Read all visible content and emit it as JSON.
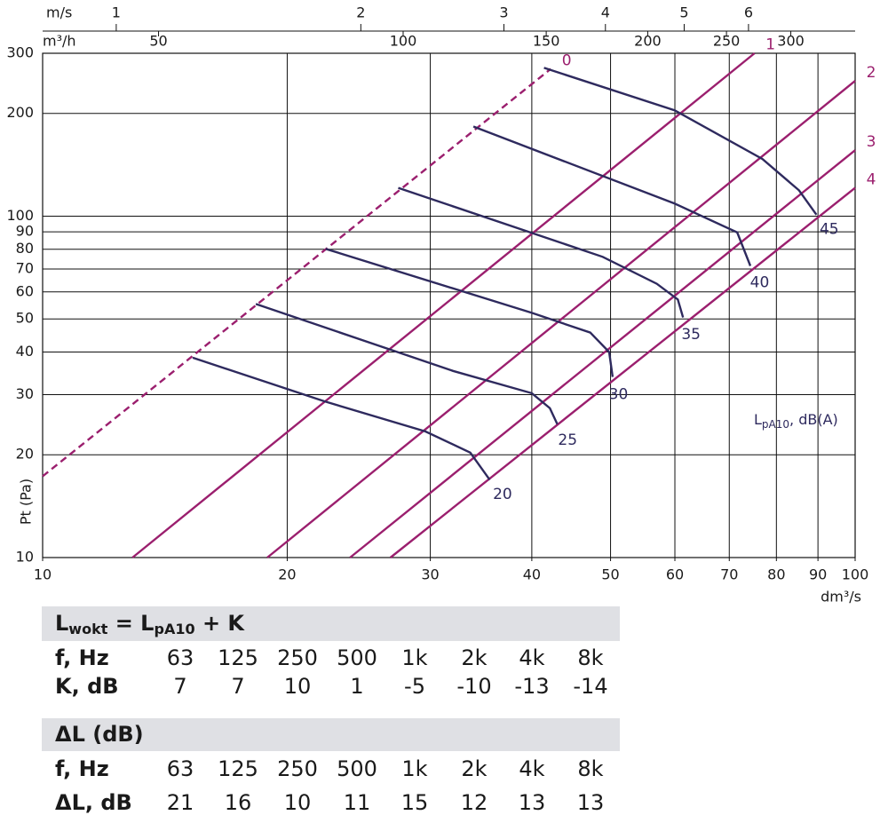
{
  "chart_data": {
    "type": "line",
    "xscale": "log",
    "yscale": "log",
    "xlim": [
      10,
      100
    ],
    "ylim": [
      10,
      300
    ],
    "xticks": [
      10,
      20,
      30,
      40,
      50,
      60,
      70,
      80,
      90,
      100
    ],
    "yticks": [
      10,
      20,
      30,
      40,
      50,
      60,
      70,
      80,
      90,
      100,
      200,
      300
    ],
    "xlabel": "dm³/s",
    "ylabel": "Pt (Pa)",
    "x2label": "m/s",
    "x2lim": [
      0.8117,
      8.117
    ],
    "x2ticks": [
      1,
      2,
      3,
      4,
      5,
      6
    ],
    "x3label": "m³/h",
    "x3lim": [
      36,
      360
    ],
    "x3ticks": [
      50,
      100,
      150,
      200,
      250,
      300
    ],
    "grid": true,
    "annotation": [
      "L",
      "pA10",
      ", dB(A)"
    ],
    "series": [
      {
        "name": "0",
        "color": "#9b1f6e",
        "dashed": true,
        "x": [
          10,
          42.2
        ],
        "values": [
          17.3,
          270
        ]
      },
      {
        "name": "1",
        "color": "#9b1f6e",
        "x": [
          12.9,
          75.2
        ],
        "values": [
          10,
          300
        ]
      },
      {
        "name": "2",
        "color": "#9b1f6e",
        "x": [
          18.9,
          100
        ],
        "values": [
          10,
          249
        ]
      },
      {
        "name": "3",
        "color": "#9b1f6e",
        "x": [
          23.9,
          100
        ],
        "values": [
          10,
          156
        ]
      },
      {
        "name": "4",
        "color": "#9b1f6e",
        "x": [
          26.8,
          100
        ],
        "values": [
          10,
          121
        ]
      },
      {
        "name": "20",
        "color": "#2e2a5e",
        "x": [
          15.3,
          22.2,
          29.6,
          33.6,
          35.5
        ],
        "values": [
          38.5,
          28.7,
          23.4,
          20.3,
          16.9
        ]
      },
      {
        "name": "25",
        "color": "#2e2a5e",
        "x": [
          18.3,
          32,
          40,
          42.1,
          43
        ],
        "values": [
          55.3,
          35.2,
          30.3,
          27.4,
          24.6
        ]
      },
      {
        "name": "30",
        "color": "#2e2a5e",
        "x": [
          22.3,
          40,
          47.2,
          49.8,
          50.3
        ],
        "values": [
          80.2,
          52.1,
          45.6,
          40,
          33.8
        ]
      },
      {
        "name": "35",
        "color": "#2e2a5e",
        "x": [
          27.4,
          48.9,
          57,
          60.5,
          61.4
        ],
        "values": [
          121,
          76,
          63.4,
          57,
          50.5
        ]
      },
      {
        "name": "40",
        "color": "#2e2a5e",
        "x": [
          33.9,
          60,
          71.6,
          74.3
        ],
        "values": [
          183,
          108.8,
          89.6,
          71.5
        ]
      },
      {
        "name": "45",
        "color": "#2e2a5e",
        "x": [
          41.4,
          60,
          76.9,
          85.3,
          89.6
        ],
        "values": [
          272,
          204,
          147,
          119,
          101
        ]
      }
    ]
  },
  "tables": [
    {
      "title": [
        "L",
        "wokt",
        " = L",
        "pA10",
        " + K"
      ],
      "rows": [
        [
          "f, Hz",
          63,
          125,
          250,
          500,
          "1k",
          "2k",
          "4k",
          "8k"
        ],
        [
          "K, dB",
          7,
          7,
          10,
          1,
          -5,
          -10,
          -13,
          -14
        ]
      ]
    },
    {
      "title": [
        "ΔL (dB)"
      ],
      "rows": [
        [
          "f, Hz",
          63,
          125,
          250,
          500,
          "1k",
          "2k",
          "4k",
          "8k"
        ],
        [
          "ΔL, dB",
          21,
          16,
          10,
          11,
          15,
          12,
          13,
          13
        ]
      ]
    }
  ]
}
